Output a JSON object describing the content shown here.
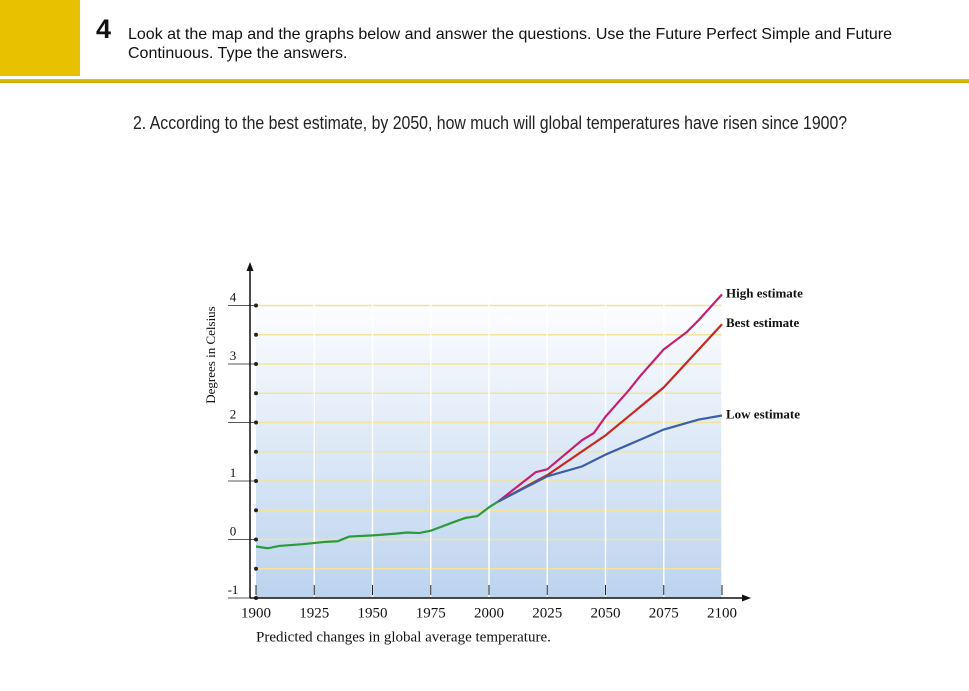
{
  "header": {
    "number": "4",
    "instruction": "Look at the map and the graphs below and answer the questions. Use the Future Perfect Simple and Future Continuous. Type the answers."
  },
  "question": "2. According to the best estimate, by 2050, how much will global temperatures have risen since 1900?",
  "chart_data": {
    "type": "line",
    "y_label": "Degrees in Celsius",
    "x_label": "Predicted changes in global average temperature.",
    "xlim": [
      1900,
      2100
    ],
    "xticks": [
      1900,
      1925,
      1950,
      1975,
      2000,
      2025,
      2050,
      2075,
      2100
    ],
    "ylim": [
      -1,
      4.2
    ],
    "yticks": [
      -1,
      0,
      1,
      2,
      3,
      4
    ],
    "y_minor_ticks": [
      -0.5,
      0.5,
      1.5,
      2.5,
      3.5
    ],
    "grid": true,
    "series": [
      {
        "color": "#2a9a3a",
        "x": [
          1900,
          1905,
          1910,
          1920,
          1930,
          1935,
          1940,
          1950,
          1960,
          1965,
          1970,
          1975,
          1985,
          1990,
          1995,
          2000,
          2004
        ],
        "values": [
          -0.12,
          -0.15,
          -0.11,
          -0.08,
          -0.04,
          -0.03,
          0.05,
          0.07,
          0.1,
          0.12,
          0.11,
          0.15,
          0.3,
          0.37,
          0.4,
          0.55,
          0.65
        ]
      },
      {
        "name": "High estimate",
        "color": "#c41f72",
        "x": [
          2004,
          2020,
          2025,
          2040,
          2045,
          2050,
          2060,
          2065,
          2075,
          2085,
          2090,
          2100
        ],
        "values": [
          0.65,
          1.15,
          1.2,
          1.7,
          1.82,
          2.1,
          2.55,
          2.8,
          3.25,
          3.55,
          3.75,
          4.19
        ]
      },
      {
        "name": "Best estimate",
        "color": "#c8281e",
        "x": [
          2004,
          2025,
          2050,
          2075,
          2100
        ],
        "values": [
          0.65,
          1.1,
          1.78,
          2.6,
          3.68
        ]
      },
      {
        "name": "Low estimate",
        "color": "#3a5fa8",
        "x": [
          2004,
          2025,
          2040,
          2050,
          2075,
          2090,
          2100
        ],
        "values": [
          0.65,
          1.08,
          1.25,
          1.45,
          1.88,
          2.05,
          2.12
        ]
      }
    ]
  }
}
